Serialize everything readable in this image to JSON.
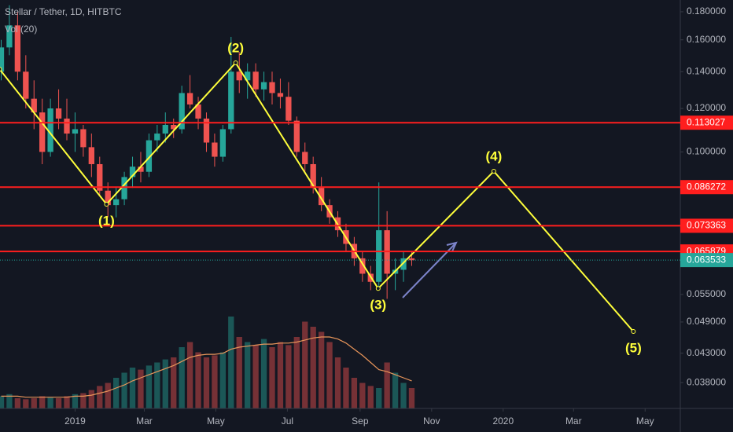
{
  "chart_data": {
    "type": "candlestick",
    "title": "Stellar / Tether, 1D, HITBTC",
    "x": [
      -63,
      -56,
      -49,
      -42,
      -35,
      -28,
      -21,
      -14,
      -7,
      0,
      7,
      14,
      21,
      28,
      35,
      42,
      49,
      56,
      63,
      70,
      77,
      84,
      91,
      98,
      105,
      112,
      119,
      126,
      133,
      140,
      147,
      154,
      161,
      168,
      175,
      182,
      189,
      196,
      203,
      210,
      217,
      224,
      231,
      238,
      245,
      252,
      259,
      266,
      273,
      280,
      287
    ],
    "open": [
      0.14,
      0.155,
      0.17,
      0.14,
      0.125,
      0.118,
      0.1,
      0.12,
      0.115,
      0.108,
      0.11,
      0.102,
      0.095,
      0.085,
      0.08,
      0.082,
      0.09,
      0.094,
      0.092,
      0.105,
      0.108,
      0.112,
      0.11,
      0.128,
      0.122,
      0.115,
      0.104,
      0.098,
      0.11,
      0.14,
      0.135,
      0.14,
      0.13,
      0.134,
      0.128,
      0.126,
      0.114,
      0.1,
      0.095,
      0.086,
      0.08,
      0.076,
      0.072,
      0.068,
      0.064,
      0.06,
      0.058,
      0.072,
      0.06,
      0.061,
      0.064
    ],
    "high": [
      0.16,
      0.185,
      0.18,
      0.15,
      0.135,
      0.125,
      0.125,
      0.13,
      0.125,
      0.118,
      0.112,
      0.108,
      0.098,
      0.088,
      0.086,
      0.092,
      0.098,
      0.1,
      0.108,
      0.112,
      0.118,
      0.115,
      0.132,
      0.138,
      0.126,
      0.118,
      0.108,
      0.112,
      0.162,
      0.152,
      0.145,
      0.145,
      0.14,
      0.14,
      0.136,
      0.134,
      0.116,
      0.104,
      0.098,
      0.09,
      0.082,
      0.078,
      0.074,
      0.07,
      0.066,
      0.062,
      0.088,
      0.078,
      0.064,
      0.066,
      0.066
    ],
    "low": [
      0.135,
      0.15,
      0.135,
      0.12,
      0.11,
      0.095,
      0.098,
      0.11,
      0.105,
      0.1,
      0.098,
      0.09,
      0.083,
      0.076,
      0.076,
      0.08,
      0.086,
      0.088,
      0.09,
      0.1,
      0.104,
      0.106,
      0.108,
      0.12,
      0.11,
      0.1,
      0.094,
      0.096,
      0.108,
      0.128,
      0.125,
      0.126,
      0.124,
      0.122,
      0.12,
      0.112,
      0.098,
      0.092,
      0.084,
      0.078,
      0.074,
      0.07,
      0.066,
      0.062,
      0.058,
      0.056,
      0.056,
      0.054,
      0.056,
      0.058,
      0.062
    ],
    "close": [
      0.155,
      0.17,
      0.14,
      0.125,
      0.118,
      0.1,
      0.12,
      0.115,
      0.108,
      0.11,
      0.102,
      0.095,
      0.085,
      0.08,
      0.082,
      0.09,
      0.094,
      0.092,
      0.105,
      0.108,
      0.112,
      0.11,
      0.128,
      0.122,
      0.115,
      0.104,
      0.098,
      0.11,
      0.14,
      0.135,
      0.14,
      0.13,
      0.134,
      0.128,
      0.126,
      0.114,
      0.1,
      0.095,
      0.086,
      0.08,
      0.076,
      0.072,
      0.068,
      0.064,
      0.06,
      0.058,
      0.072,
      0.06,
      0.061,
      0.064,
      0.0635
    ],
    "up_color": "#26a69a",
    "down_color": "#ef5350",
    "xlim": [
      -64,
      516
    ],
    "xticks": [
      {
        "value": 0,
        "label": "2019"
      },
      {
        "value": 59,
        "label": "Mar"
      },
      {
        "value": 120,
        "label": "May"
      },
      {
        "value": 181,
        "label": "Jul"
      },
      {
        "value": 243,
        "label": "Sep"
      },
      {
        "value": 304,
        "label": "Nov"
      },
      {
        "value": 365,
        "label": "2020"
      },
      {
        "value": 425,
        "label": "Mar"
      },
      {
        "value": 486,
        "label": "May"
      }
    ],
    "ylim": [
      0.0341,
      0.1891
    ],
    "log_scale": true,
    "yticks": [
      {
        "value": 0.18,
        "label": "0.180000"
      },
      {
        "value": 0.16,
        "label": "0.160000"
      },
      {
        "value": 0.14,
        "label": "0.140000"
      },
      {
        "value": 0.12,
        "label": "0.120000"
      },
      {
        "value": 0.1,
        "label": "0.100000"
      },
      {
        "value": 0.055,
        "label": "0.055000"
      },
      {
        "value": 0.049,
        "label": "0.049000"
      },
      {
        "value": 0.043,
        "label": "0.043000"
      },
      {
        "value": 0.038,
        "label": "0.038000"
      }
    ],
    "volume": {
      "name": "Vol (20)",
      "values": [
        12,
        14,
        10,
        9,
        10,
        12,
        11,
        10,
        12,
        14,
        15,
        18,
        22,
        25,
        30,
        35,
        40,
        38,
        42,
        45,
        48,
        50,
        60,
        65,
        55,
        50,
        52,
        55,
        90,
        70,
        65,
        62,
        68,
        60,
        65,
        62,
        70,
        85,
        80,
        75,
        65,
        50,
        40,
        30,
        25,
        22,
        20,
        45,
        35,
        25,
        20
      ],
      "ma_values": [
        12,
        12,
        12,
        11,
        11,
        11,
        11,
        11,
        11,
        12,
        12,
        13,
        15,
        17,
        20,
        23,
        27,
        30,
        33,
        36,
        39,
        42,
        46,
        50,
        52,
        53,
        53,
        54,
        58,
        60,
        61,
        62,
        63,
        63,
        64,
        64,
        65,
        67,
        69,
        70,
        70,
        68,
        64,
        58,
        52,
        45,
        38,
        36,
        33,
        30,
        27
      ],
      "ma_color": "#e8955a",
      "ylim": [
        0,
        100
      ]
    },
    "levels": {
      "values": [
        0.113027,
        0.086272,
        0.073363,
        0.065879
      ],
      "value_labels": [
        "0.113027",
        "0.086272",
        "0.073363",
        "0.065879"
      ],
      "color": "#ff1e1e"
    },
    "last_price": {
      "value": 0.063533,
      "label": "0.063533",
      "color": "#26a69a"
    },
    "waves": {
      "x": [
        -64.4,
        26.8,
        136.9,
        258.4,
        357,
        476
      ],
      "values": [
        0.1415,
        0.0803,
        0.1453,
        0.0564,
        0.0922,
        0.0471
      ],
      "labels": [
        null,
        "(1)",
        "(2)",
        "(3)",
        "(4)",
        "(5)"
      ],
      "color": "#ffff3b"
    }
  }
}
